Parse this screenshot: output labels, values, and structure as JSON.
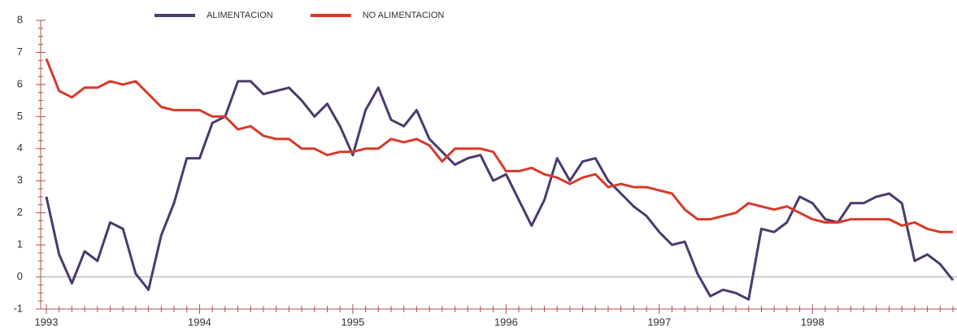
{
  "chart_data": {
    "type": "line",
    "categories": [
      "1993",
      null,
      null,
      null,
      null,
      null,
      null,
      null,
      null,
      null,
      null,
      null,
      "1994",
      null,
      null,
      null,
      null,
      null,
      null,
      null,
      null,
      null,
      null,
      null,
      "1995",
      null,
      null,
      null,
      null,
      null,
      null,
      null,
      null,
      null,
      null,
      null,
      "1996",
      null,
      null,
      null,
      null,
      null,
      null,
      null,
      null,
      null,
      null,
      null,
      "1997",
      null,
      null,
      null,
      null,
      null,
      null,
      null,
      null,
      null,
      null,
      null,
      "1998",
      null,
      null,
      null,
      null,
      null,
      null,
      null,
      null,
      null,
      null,
      null
    ],
    "series": [
      {
        "name": "ALIMENTACION",
        "color": "#4b3a6e",
        "values": [
          2.5,
          0.7,
          -0.2,
          0.8,
          0.5,
          1.7,
          1.5,
          0.1,
          -0.4,
          1.3,
          2.3,
          3.7,
          3.7,
          4.8,
          5.0,
          6.1,
          6.1,
          5.7,
          5.8,
          5.9,
          5.5,
          5.0,
          5.4,
          4.7,
          3.8,
          5.2,
          5.9,
          4.9,
          4.7,
          5.2,
          4.3,
          3.9,
          3.5,
          3.7,
          3.8,
          3.0,
          3.2,
          2.4,
          1.6,
          2.4,
          3.7,
          3.0,
          3.6,
          3.7,
          3.0,
          2.6,
          2.2,
          1.9,
          1.4,
          1.0,
          1.1,
          0.1,
          -0.6,
          -0.4,
          -0.5,
          -0.7,
          1.5,
          1.4,
          1.7,
          2.5,
          2.3,
          1.8,
          1.7,
          2.3,
          2.3,
          2.5,
          2.6,
          2.3,
          0.5,
          0.7,
          0.4,
          -0.1
        ]
      },
      {
        "name": "NO ALIMENTACION",
        "color": "#d63a2a",
        "values": [
          6.8,
          5.8,
          5.6,
          5.9,
          5.9,
          6.1,
          6.0,
          6.1,
          5.7,
          5.3,
          5.2,
          5.2,
          5.2,
          5.0,
          5.0,
          4.6,
          4.7,
          4.4,
          4.3,
          4.3,
          4.0,
          4.0,
          3.8,
          3.9,
          3.9,
          4.0,
          4.0,
          4.3,
          4.2,
          4.3,
          4.1,
          3.6,
          4.0,
          4.0,
          4.0,
          3.9,
          3.3,
          3.3,
          3.4,
          3.2,
          3.1,
          2.9,
          3.1,
          3.2,
          2.8,
          2.9,
          2.8,
          2.8,
          2.7,
          2.6,
          2.1,
          1.8,
          1.8,
          1.9,
          2.0,
          2.3,
          2.2,
          2.1,
          2.2,
          2.0,
          1.8,
          1.7,
          1.7,
          1.8,
          1.8,
          1.8,
          1.8,
          1.6,
          1.7,
          1.5,
          1.4,
          1.4
        ]
      }
    ],
    "ylim": [
      -1,
      8
    ],
    "yticks": [
      -1,
      0,
      1,
      2,
      3,
      4,
      5,
      6,
      7,
      8
    ],
    "legend": "top"
  }
}
